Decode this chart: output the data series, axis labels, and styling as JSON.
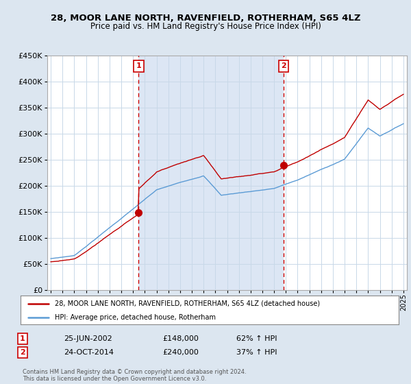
{
  "title": "28, MOOR LANE NORTH, RAVENFIELD, ROTHERHAM, S65 4LZ",
  "subtitle": "Price paid vs. HM Land Registry's House Price Index (HPI)",
  "hpi_color": "#5b9bd5",
  "property_color": "#c00000",
  "sale1_date": "25-JUN-2002",
  "sale1_price": 148000,
  "sale1_hpi_pct": "62% ↑ HPI",
  "sale2_date": "24-OCT-2014",
  "sale2_price": 240000,
  "sale2_hpi_pct": "37% ↑ HPI",
  "legend_property": "28, MOOR LANE NORTH, RAVENFIELD, ROTHERHAM, S65 4LZ (detached house)",
  "legend_hpi": "HPI: Average price, detached house, Rotherham",
  "footer": "Contains HM Land Registry data © Crown copyright and database right 2024.\nThis data is licensed under the Open Government Licence v3.0.",
  "ylim": [
    0,
    450000
  ],
  "yticks": [
    0,
    50000,
    100000,
    150000,
    200000,
    250000,
    300000,
    350000,
    400000,
    450000
  ],
  "background_color": "#dce6f0",
  "plot_bg_color": "#ffffff",
  "shaded_bg_color": "#dce6f4",
  "vline1_x": 2002.48,
  "vline2_x": 2014.81,
  "xmin": 1995,
  "xmax": 2025
}
